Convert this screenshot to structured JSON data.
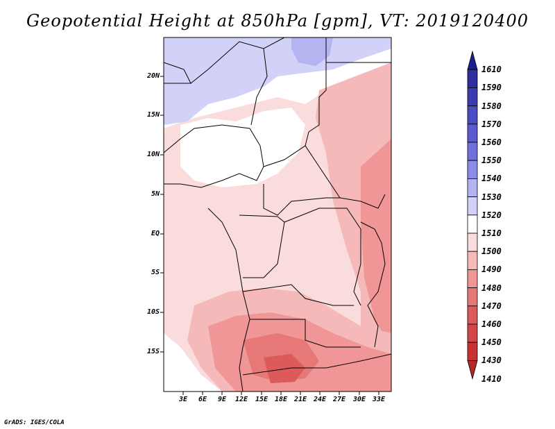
{
  "title": "Geopotential Height at 850hPa [gpm], VT: 2019120400",
  "footer": "GrADS: IGES/COLA",
  "lat_labels": [
    "20N",
    "15N",
    "10N",
    "5N",
    "EQ",
    "5S",
    "10S",
    "15S"
  ],
  "lon_labels": [
    "3E",
    "6E",
    "9E",
    "12E",
    "15E",
    "18E",
    "21E",
    "24E",
    "27E",
    "30E",
    "33E"
  ],
  "colorbar": {
    "labels": [
      "1610",
      "1590",
      "1580",
      "1570",
      "1560",
      "1550",
      "1540",
      "1530",
      "1520",
      "1510",
      "1500",
      "1490",
      "1480",
      "1470",
      "1460",
      "1450",
      "1430",
      "1410"
    ],
    "colors": [
      "#1e1e8c",
      "#2d2d9e",
      "#3c3cb0",
      "#4b4bc2",
      "#5a5ad2",
      "#7070dc",
      "#8c8ce6",
      "#b4b4f0",
      "#d2d2f8",
      "#ffffff",
      "#fadcdc",
      "#f5b9b9",
      "#f09696",
      "#e67878",
      "#dc5a5a",
      "#d24646",
      "#c83232",
      "#b42828"
    ]
  },
  "map": {
    "lon_range": [
      0,
      35
    ],
    "lat_range": [
      -20,
      25
    ]
  }
}
